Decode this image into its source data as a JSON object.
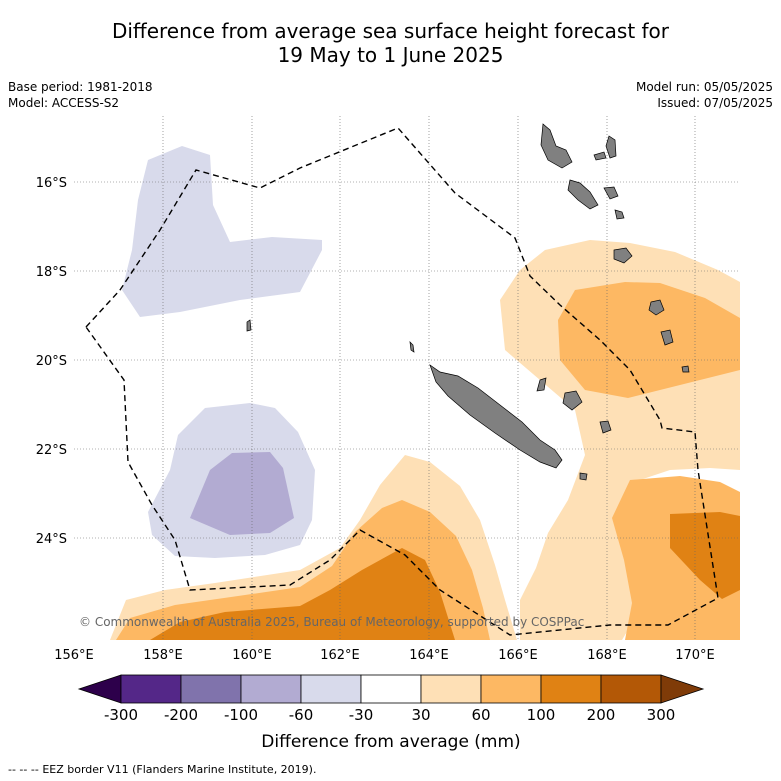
{
  "title": {
    "line1": "Difference from average sea surface height forecast for",
    "line2": "19 May to 1 June 2025"
  },
  "meta": {
    "base_period": "Base period: 1981-2018",
    "model": "Model: ACCESS-S2",
    "model_run": "Model run: 05/05/2025",
    "issued": "Issued: 07/05/2025"
  },
  "map": {
    "lon_ticks": [
      "156°E",
      "158°E",
      "160°E",
      "162°E",
      "164°E",
      "166°E",
      "168°E",
      "170°E"
    ],
    "lat_ticks": [
      "16°S",
      "18°S",
      "20°S",
      "22°S",
      "24°S"
    ],
    "copyright": "© Commonwealth of Australia 2025, Bureau of Meteorology, supported by COSPPac"
  },
  "colorbar": {
    "ticks": [
      "-300",
      "-200",
      "-100",
      "-60",
      "-30",
      "30",
      "60",
      "100",
      "200",
      "300"
    ],
    "label": "Difference from average (mm)",
    "colors": [
      "#542788",
      "#8073ac",
      "#b2abd2",
      "#d8daeb",
      "#ffffff",
      "#fee0b6",
      "#fdb863",
      "#e08214",
      "#b35806"
    ],
    "under_color": "#2d004b",
    "over_color": "#7f3b08"
  },
  "legend": {
    "eez_dash": "--  --  --",
    "eez_text": "EEZ border V11 (Flanders Marine Institute, 2019)."
  }
}
